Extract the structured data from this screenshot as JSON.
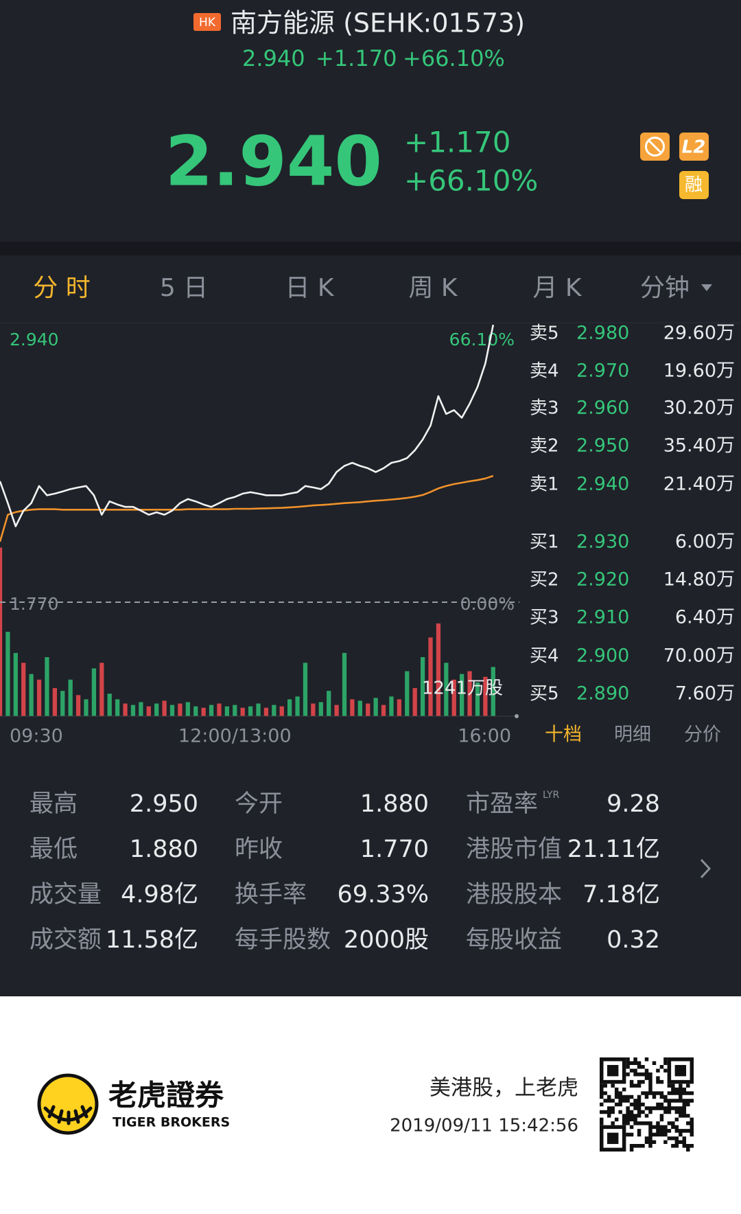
{
  "header": {
    "badge": "HK",
    "title": "南方能源 (SEHK:01573)",
    "price": "2.940",
    "change": "+1.170",
    "change_pct": "+66.10%",
    "icons": [
      "L2",
      "融"
    ]
  },
  "tabs": [
    "分 时",
    "5 日",
    "日 K",
    "周 K",
    "月 K",
    "分钟"
  ],
  "chart_data": {
    "type": "line",
    "categories": [
      "09:30",
      null,
      null,
      null,
      null,
      null,
      null,
      null,
      null,
      null,
      null,
      null,
      null,
      null,
      null,
      null,
      null,
      null,
      null,
      null,
      null,
      null,
      null,
      null,
      null,
      null,
      null,
      null,
      null,
      null,
      "12:00/13:00",
      null,
      null,
      null,
      null,
      null,
      null,
      null,
      null,
      null,
      null,
      null,
      null,
      null,
      null,
      null,
      null,
      null,
      null,
      null,
      null,
      null,
      null,
      null,
      null,
      null,
      null,
      null,
      null,
      null,
      null,
      null,
      null,
      null,
      null,
      null,
      "16:00"
    ],
    "series": [
      {
        "color": "#f2f2f2",
        "values": [
          2.28,
          2.188,
          2.09,
          2.156,
          2.188,
          2.26,
          2.221,
          2.228,
          2.237,
          2.247,
          2.254,
          2.26,
          2.221,
          2.139,
          2.195,
          2.182,
          2.172,
          2.172,
          2.156,
          2.139,
          2.149,
          2.139,
          2.156,
          2.188,
          2.205,
          2.195,
          2.182,
          2.172,
          2.188,
          2.205,
          2.214,
          2.228,
          2.234,
          2.228,
          2.221,
          2.221,
          2.221,
          2.228,
          2.234,
          2.26,
          2.254,
          2.247,
          2.27,
          2.319,
          2.345,
          2.358,
          2.345,
          2.335,
          2.319,
          2.335,
          2.358,
          2.365,
          2.378,
          2.411,
          2.456,
          2.515,
          2.639,
          2.564,
          2.58,
          2.548,
          2.607,
          2.678,
          2.777,
          2.94,
          null,
          null,
          null
        ]
      },
      {
        "color": "#f0922b",
        "values": [
          2.025,
          2.139,
          2.15,
          2.156,
          2.16,
          2.162,
          2.162,
          2.162,
          2.16,
          2.16,
          2.16,
          2.16,
          2.16,
          2.16,
          2.16,
          2.16,
          2.16,
          2.16,
          2.16,
          2.16,
          2.16,
          2.16,
          2.16,
          2.16,
          2.162,
          2.162,
          2.162,
          2.162,
          2.162,
          2.162,
          2.164,
          2.164,
          2.164,
          2.165,
          2.166,
          2.167,
          2.168,
          2.17,
          2.172,
          2.175,
          2.178,
          2.18,
          2.182,
          2.185,
          2.188,
          2.19,
          2.192,
          2.195,
          2.198,
          2.2,
          2.203,
          2.206,
          2.21,
          2.215,
          2.222,
          2.235,
          2.25,
          2.26,
          2.268,
          2.274,
          2.28,
          2.285,
          2.292,
          2.303,
          null,
          null,
          null
        ]
      }
    ],
    "ylim": [
      1.77,
      2.94
    ],
    "yticks": [
      {
        "value": 2.94,
        "label": "2.940"
      },
      {
        "value": 1.77,
        "label": "1.770"
      }
    ],
    "y2lim": [
      0,
      66.1
    ],
    "y2ticks": [
      {
        "value": 66.1,
        "label": "66.10%"
      },
      {
        "value": 0,
        "label": "0.00%"
      }
    ],
    "volume": {
      "ylim": [
        0,
        1241
      ],
      "max_label": "1241万股",
      "values": [
        1200,
        600,
        450,
        380,
        300,
        260,
        420,
        200,
        180,
        260,
        150,
        120,
        340,
        380,
        160,
        120,
        90,
        80,
        100,
        70,
        90,
        110,
        80,
        90,
        100,
        70,
        60,
        80,
        90,
        70,
        80,
        60,
        70,
        90,
        60,
        80,
        70,
        120,
        140,
        380,
        90,
        100,
        180,
        80,
        450,
        120,
        110,
        90,
        130,
        80,
        140,
        120,
        320,
        200,
        420,
        560,
        660,
        380,
        260,
        300,
        320,
        240,
        280,
        350,
        null,
        null,
        null
      ],
      "colors": [
        "#e5484d",
        "#2fb36e",
        "#2fb36e",
        "#e5484d",
        "#2fb36e",
        "#e5484d",
        "#2fb36e",
        "#e5484d",
        "#2fb36e",
        "#2fb36e",
        "#e5484d",
        "#2fb36e",
        "#2fb36e",
        "#e5484d",
        "#2fb36e",
        "#2fb36e",
        "#e5484d",
        "#2fb36e",
        "#2fb36e",
        "#e5484d",
        "#2fb36e",
        "#e5484d",
        "#2fb36e",
        "#e5484d",
        "#2fb36e",
        "#2fb36e",
        "#e5484d",
        "#2fb36e",
        "#e5484d",
        "#2fb36e",
        "#2fb36e",
        "#e5484d",
        "#2fb36e",
        "#2fb36e",
        "#e5484d",
        "#2fb36e",
        "#e5484d",
        "#2fb36e",
        "#2fb36e",
        "#2fb36e",
        "#e5484d",
        "#2fb36e",
        "#2fb36e",
        "#e5484d",
        "#2fb36e",
        "#e5484d",
        "#2fb36e",
        "#e5484d",
        "#2fb36e",
        "#e5484d",
        "#2fb36e",
        "#e5484d",
        "#2fb36e",
        "#e5484d",
        "#2fb36e",
        "#e5484d",
        "#e5484d",
        "#2fb36e",
        "#e5484d",
        "#2fb36e",
        "#e5484d",
        "#2fb36e",
        "#e5484d",
        "#2fb36e",
        null,
        null,
        null
      ]
    }
  },
  "order_book": {
    "asks": [
      {
        "label": "卖5",
        "price": "2.980",
        "volume": "29.60万"
      },
      {
        "label": "卖4",
        "price": "2.970",
        "volume": "19.60万"
      },
      {
        "label": "卖3",
        "price": "2.960",
        "volume": "30.20万"
      },
      {
        "label": "卖2",
        "price": "2.950",
        "volume": "35.40万"
      },
      {
        "label": "卖1",
        "price": "2.940",
        "volume": "21.40万"
      }
    ],
    "bids": [
      {
        "label": "买1",
        "price": "2.930",
        "volume": "6.00万"
      },
      {
        "label": "买2",
        "price": "2.920",
        "volume": "14.80万"
      },
      {
        "label": "买3",
        "price": "2.910",
        "volume": "6.40万"
      },
      {
        "label": "买4",
        "price": "2.900",
        "volume": "70.00万"
      },
      {
        "label": "买5",
        "price": "2.890",
        "volume": "7.60万"
      }
    ]
  },
  "detail_tabs": [
    "十档",
    "明细",
    "分价"
  ],
  "stats": [
    [
      {
        "label": "最高",
        "value": "2.950"
      },
      {
        "label": "今开",
        "value": "1.880"
      },
      {
        "label": "市盈率",
        "sup": "LYR",
        "value": "9.28"
      }
    ],
    [
      {
        "label": "最低",
        "value": "1.880"
      },
      {
        "label": "昨收",
        "value": "1.770"
      },
      {
        "label": "港股市值",
        "value": "21.11亿"
      }
    ],
    [
      {
        "label": "成交量",
        "value": "4.98亿"
      },
      {
        "label": "换手率",
        "value": "69.33%"
      },
      {
        "label": "港股股本",
        "value": "7.18亿"
      }
    ],
    [
      {
        "label": "成交额",
        "value": "11.58亿"
      },
      {
        "label": "每手股数",
        "value": "2000股"
      },
      {
        "label": "每股收益",
        "value": "0.32"
      }
    ]
  ],
  "footer": {
    "brand": "老虎證券",
    "brand_en": "TIGER BROKERS",
    "slogan": "美港股，上老虎",
    "timestamp": "2019/09/11 15:42:56"
  }
}
